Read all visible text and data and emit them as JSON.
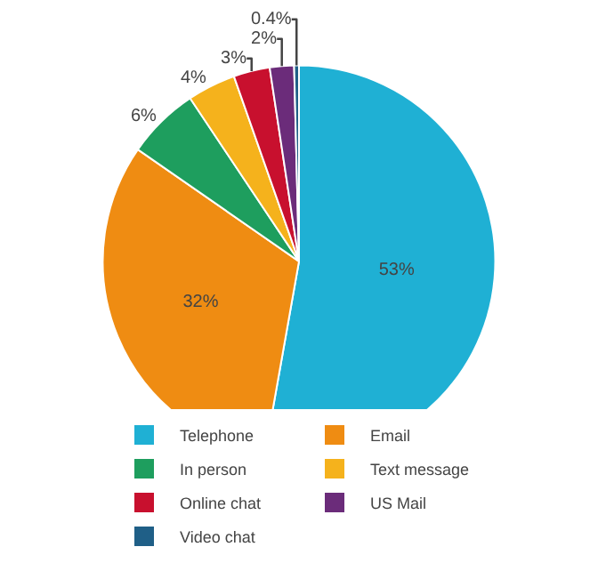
{
  "chart_data": {
    "type": "pie",
    "categories": [
      "Telephone",
      "Email",
      "In person",
      "Text message",
      "Online chat",
      "US Mail",
      "Video chat"
    ],
    "values": [
      53,
      32,
      6,
      4,
      3,
      2,
      0.4
    ],
    "value_labels": [
      "53%",
      "32%",
      "6%",
      "4%",
      "3%",
      "2%",
      "0.4%"
    ],
    "colors": [
      "#1fb0d4",
      "#ef8c12",
      "#1e9e5e",
      "#f5b21c",
      "#c8102e",
      "#6b2c7a",
      "#1f5f87"
    ],
    "legend": "bottom"
  }
}
